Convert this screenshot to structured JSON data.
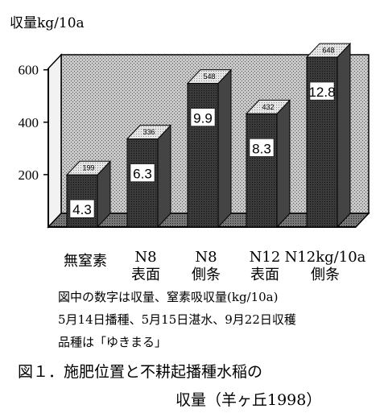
{
  "chart_data": {
    "type": "bar",
    "ylabel": "収量kg/10a",
    "yticks": [
      200,
      400,
      600
    ],
    "ylim": [
      0,
      700
    ],
    "categories": [
      [
        "無窒素"
      ],
      [
        "N8",
        "表面"
      ],
      [
        "N8",
        "側条"
      ],
      [
        "N12",
        "表面"
      ],
      [
        "N12kg/10a",
        "側条"
      ]
    ],
    "values": [
      199,
      336,
      548,
      432,
      648
    ],
    "nitrogen_uptake": [
      "4.3",
      "6.3",
      "9.9",
      "8.3",
      "12.8"
    ],
    "value_labels": [
      "199",
      "336",
      "548",
      "432",
      "648"
    ],
    "bar_colors": {
      "front": "#2a2a2a",
      "top": "#dcdcdc",
      "side": "#444444"
    },
    "grid": false
  },
  "notes": [
    "図中の数字は収量、窒素吸収量(kg/10a)",
    "5月14日播種、5月15日湛水、9月22日収穫",
    "品種は「ゆきまる」"
  ],
  "caption": {
    "line1": "図１．施肥位置と不耕起播種水稲の",
    "line2": "収量（羊ヶ丘1998）"
  }
}
